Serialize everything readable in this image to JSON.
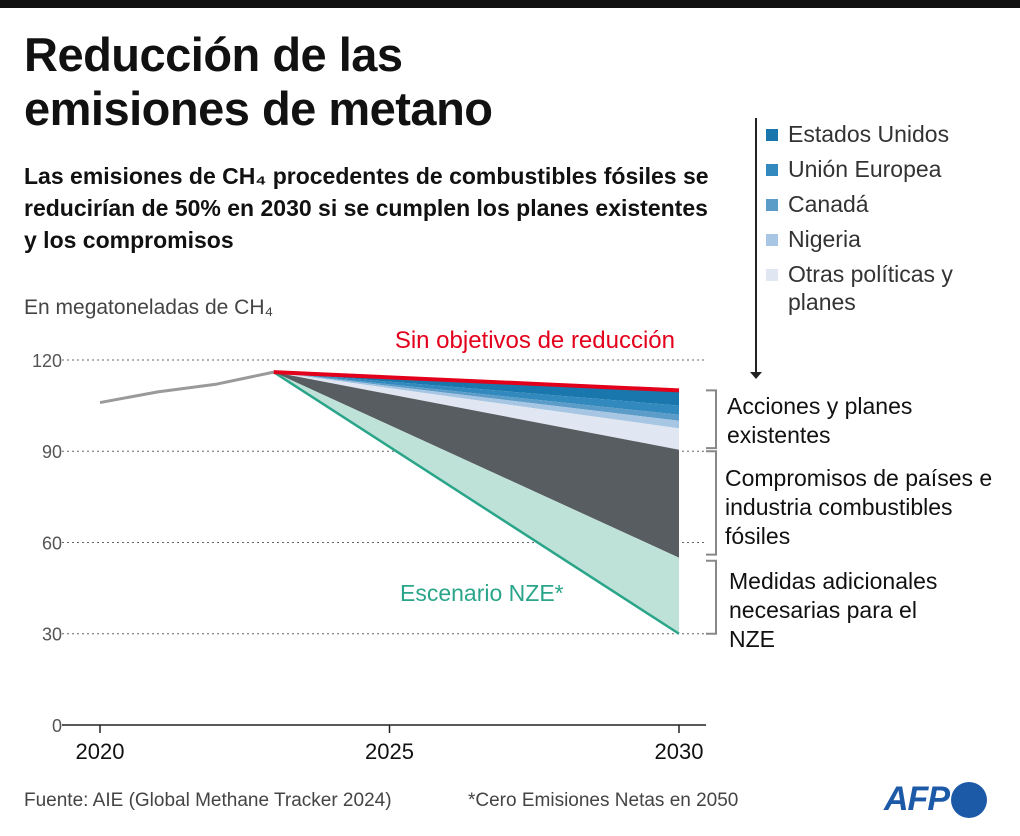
{
  "title_line1": "Reducción de las",
  "title_line2": "emisiones de metano",
  "subtitle": "Las emisiones de CH₄ procedentes de combustibles fósiles se reducirían de 50% en 2030 si se cumplen los planes existentes y los compromisos",
  "unit_label": "En megatoneladas de CH₄",
  "legend": [
    {
      "label": "Estados Unidos",
      "color": "#1a77ad"
    },
    {
      "label": "Unión Europea",
      "color": "#3189bd"
    },
    {
      "label": "Canadá",
      "color": "#5b9cc9"
    },
    {
      "label": "Nigeria",
      "color": "#a6c6e3"
    },
    {
      "label": "Otras políticas y planes",
      "color": "#e1e7f2"
    }
  ],
  "annotations": {
    "no_target": "Sin objetivos de reducción",
    "nze": "Escenario NZE*",
    "bracket_actions": "Acciones y planes existentes",
    "bracket_commitments": "Compromisos de países e industria combustibles fósiles",
    "bracket_additional": "Medidas adicionales necesarias para el NZE"
  },
  "chart_data": {
    "type": "area",
    "ylabel": "En megatoneladas de CH₄",
    "ylim": [
      0,
      120
    ],
    "xlim": [
      2020,
      2030
    ],
    "yticks": [
      0,
      30,
      60,
      90,
      120
    ],
    "xticks": [
      2020,
      2025,
      2030
    ],
    "grid": "horizontal dotted",
    "history": {
      "x": [
        2020,
        2021,
        2022,
        2023
      ],
      "y": [
        106,
        109.5,
        112,
        116
      ],
      "color": "#9a9a9a"
    },
    "no_target_line": {
      "x": [
        2023,
        2030
      ],
      "y": [
        116,
        110
      ],
      "color": "#e3001b"
    },
    "nze_line": {
      "x": [
        2023,
        2030
      ],
      "y": [
        116,
        30
      ],
      "color": "#2aa58a"
    },
    "stack_boundaries_2030": [
      {
        "name": "Estados Unidos",
        "top": 110,
        "bottom": 105,
        "color": "#1a77ad"
      },
      {
        "name": "Unión Europea",
        "top": 105,
        "bottom": 102,
        "color": "#3189bd"
      },
      {
        "name": "Canadá",
        "top": 102,
        "bottom": 100,
        "color": "#5b9cc9"
      },
      {
        "name": "Nigeria",
        "top": 100,
        "bottom": 97.5,
        "color": "#a6c6e3"
      },
      {
        "name": "Otras políticas y planes",
        "top": 97.5,
        "bottom": 90.5,
        "color": "#e1e7f2"
      },
      {
        "name": "Compromisos de países e industria combustibles fósiles",
        "top": 90.5,
        "bottom": 55,
        "color": "#575d61"
      },
      {
        "name": "Medidas adicionales necesarias para el NZE",
        "top": 55,
        "bottom": 30,
        "color": "#bfe2d8"
      }
    ],
    "start": {
      "x": 2023,
      "y": 116
    }
  },
  "footer": {
    "source": "Fuente: AIE (Global Methane Tracker 2024)",
    "note": "*Cero Emisiones Netas en 2050",
    "logo": "AFP"
  }
}
